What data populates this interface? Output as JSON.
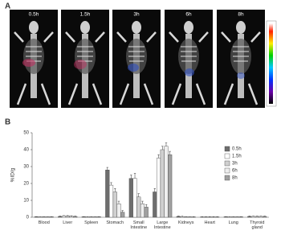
{
  "panel_labels": [
    "A",
    "B"
  ],
  "images": {
    "time_labels": [
      "0.5h",
      "1.5h",
      "3h",
      "6h",
      "8h"
    ]
  },
  "chart_data": {
    "type": "bar",
    "y_label": "%ID/g",
    "categories": [
      "Blood",
      "Liver",
      "Spleen",
      "Stomach",
      "Small Intestine",
      "Large Intestine",
      "Kidneys",
      "Heart",
      "Lung",
      "Thyroid gland"
    ],
    "series": [
      {
        "name": "0.5h",
        "color": "#6e6e6e",
        "values": [
          0.3,
          0.5,
          0.3,
          28,
          23,
          15,
          0.5,
          0.2,
          0.3,
          0.5
        ],
        "errors": [
          0.1,
          0.2,
          0.1,
          1.5,
          2,
          2,
          0.2,
          0.1,
          0.1,
          0.2
        ]
      },
      {
        "name": "1.5h",
        "color": "#ffffff",
        "values": [
          0.3,
          0.8,
          0.3,
          19,
          23,
          35,
          0.4,
          0.2,
          0.3,
          0.5
        ],
        "errors": [
          0.1,
          0.2,
          0.1,
          1.5,
          3,
          2,
          0.2,
          0.1,
          0.1,
          0.2
        ]
      },
      {
        "name": "3h",
        "color": "#d0d0d0",
        "values": [
          0.3,
          0.8,
          0.3,
          15,
          12,
          40,
          0.3,
          0.2,
          0.3,
          0.5
        ],
        "errors": [
          0.1,
          0.2,
          0.1,
          2,
          2,
          2,
          0.1,
          0.1,
          0.1,
          0.2
        ]
      },
      {
        "name": "6h",
        "color": "#eeeeee",
        "values": [
          0.3,
          0.6,
          0.3,
          8,
          8,
          42,
          0.3,
          0.2,
          0.3,
          0.5
        ],
        "errors": [
          0.1,
          0.2,
          0.1,
          1.5,
          1.5,
          2,
          0.1,
          0.1,
          0.1,
          0.2
        ]
      },
      {
        "name": "8h",
        "color": "#a0a0a0",
        "values": [
          0.3,
          0.5,
          0.3,
          3,
          6,
          37,
          0.2,
          0.2,
          0.3,
          0.5
        ],
        "errors": [
          0.1,
          0.2,
          0.1,
          1,
          1.5,
          2,
          0.1,
          0.1,
          0.1,
          0.2
        ]
      }
    ],
    "ylim": [
      0,
      50
    ],
    "yticks": [
      0,
      10,
      20,
      30,
      40,
      50
    ]
  }
}
